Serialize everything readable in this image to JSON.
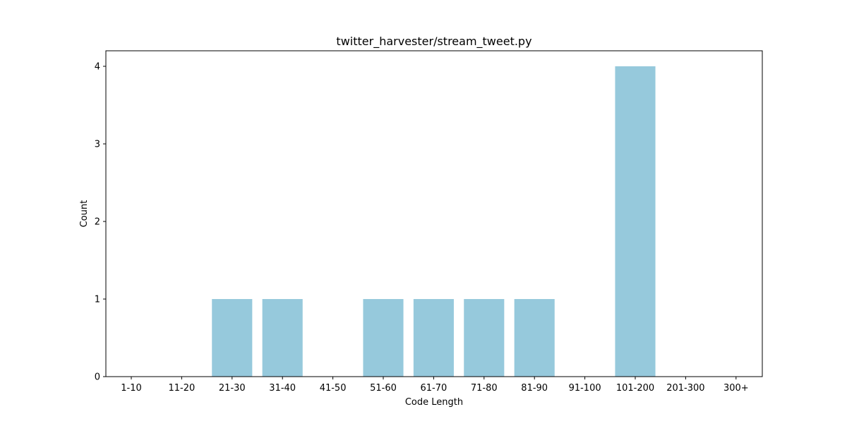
{
  "chart_data": {
    "type": "bar",
    "title": "twitter_harvester/stream_tweet.py",
    "xlabel": "Code Length",
    "ylabel": "Count",
    "categories": [
      "1-10",
      "11-20",
      "21-30",
      "31-40",
      "41-50",
      "51-60",
      "61-70",
      "71-80",
      "81-90",
      "91-100",
      "101-200",
      "201-300",
      "300+"
    ],
    "values": [
      0,
      0,
      1,
      1,
      0,
      1,
      1,
      1,
      1,
      0,
      4,
      0,
      0
    ],
    "ylim": [
      0,
      4.2
    ],
    "yticks": [
      0,
      1,
      2,
      3,
      4
    ],
    "bar_color": "#96c9dc",
    "grid": false,
    "legend": "none"
  }
}
